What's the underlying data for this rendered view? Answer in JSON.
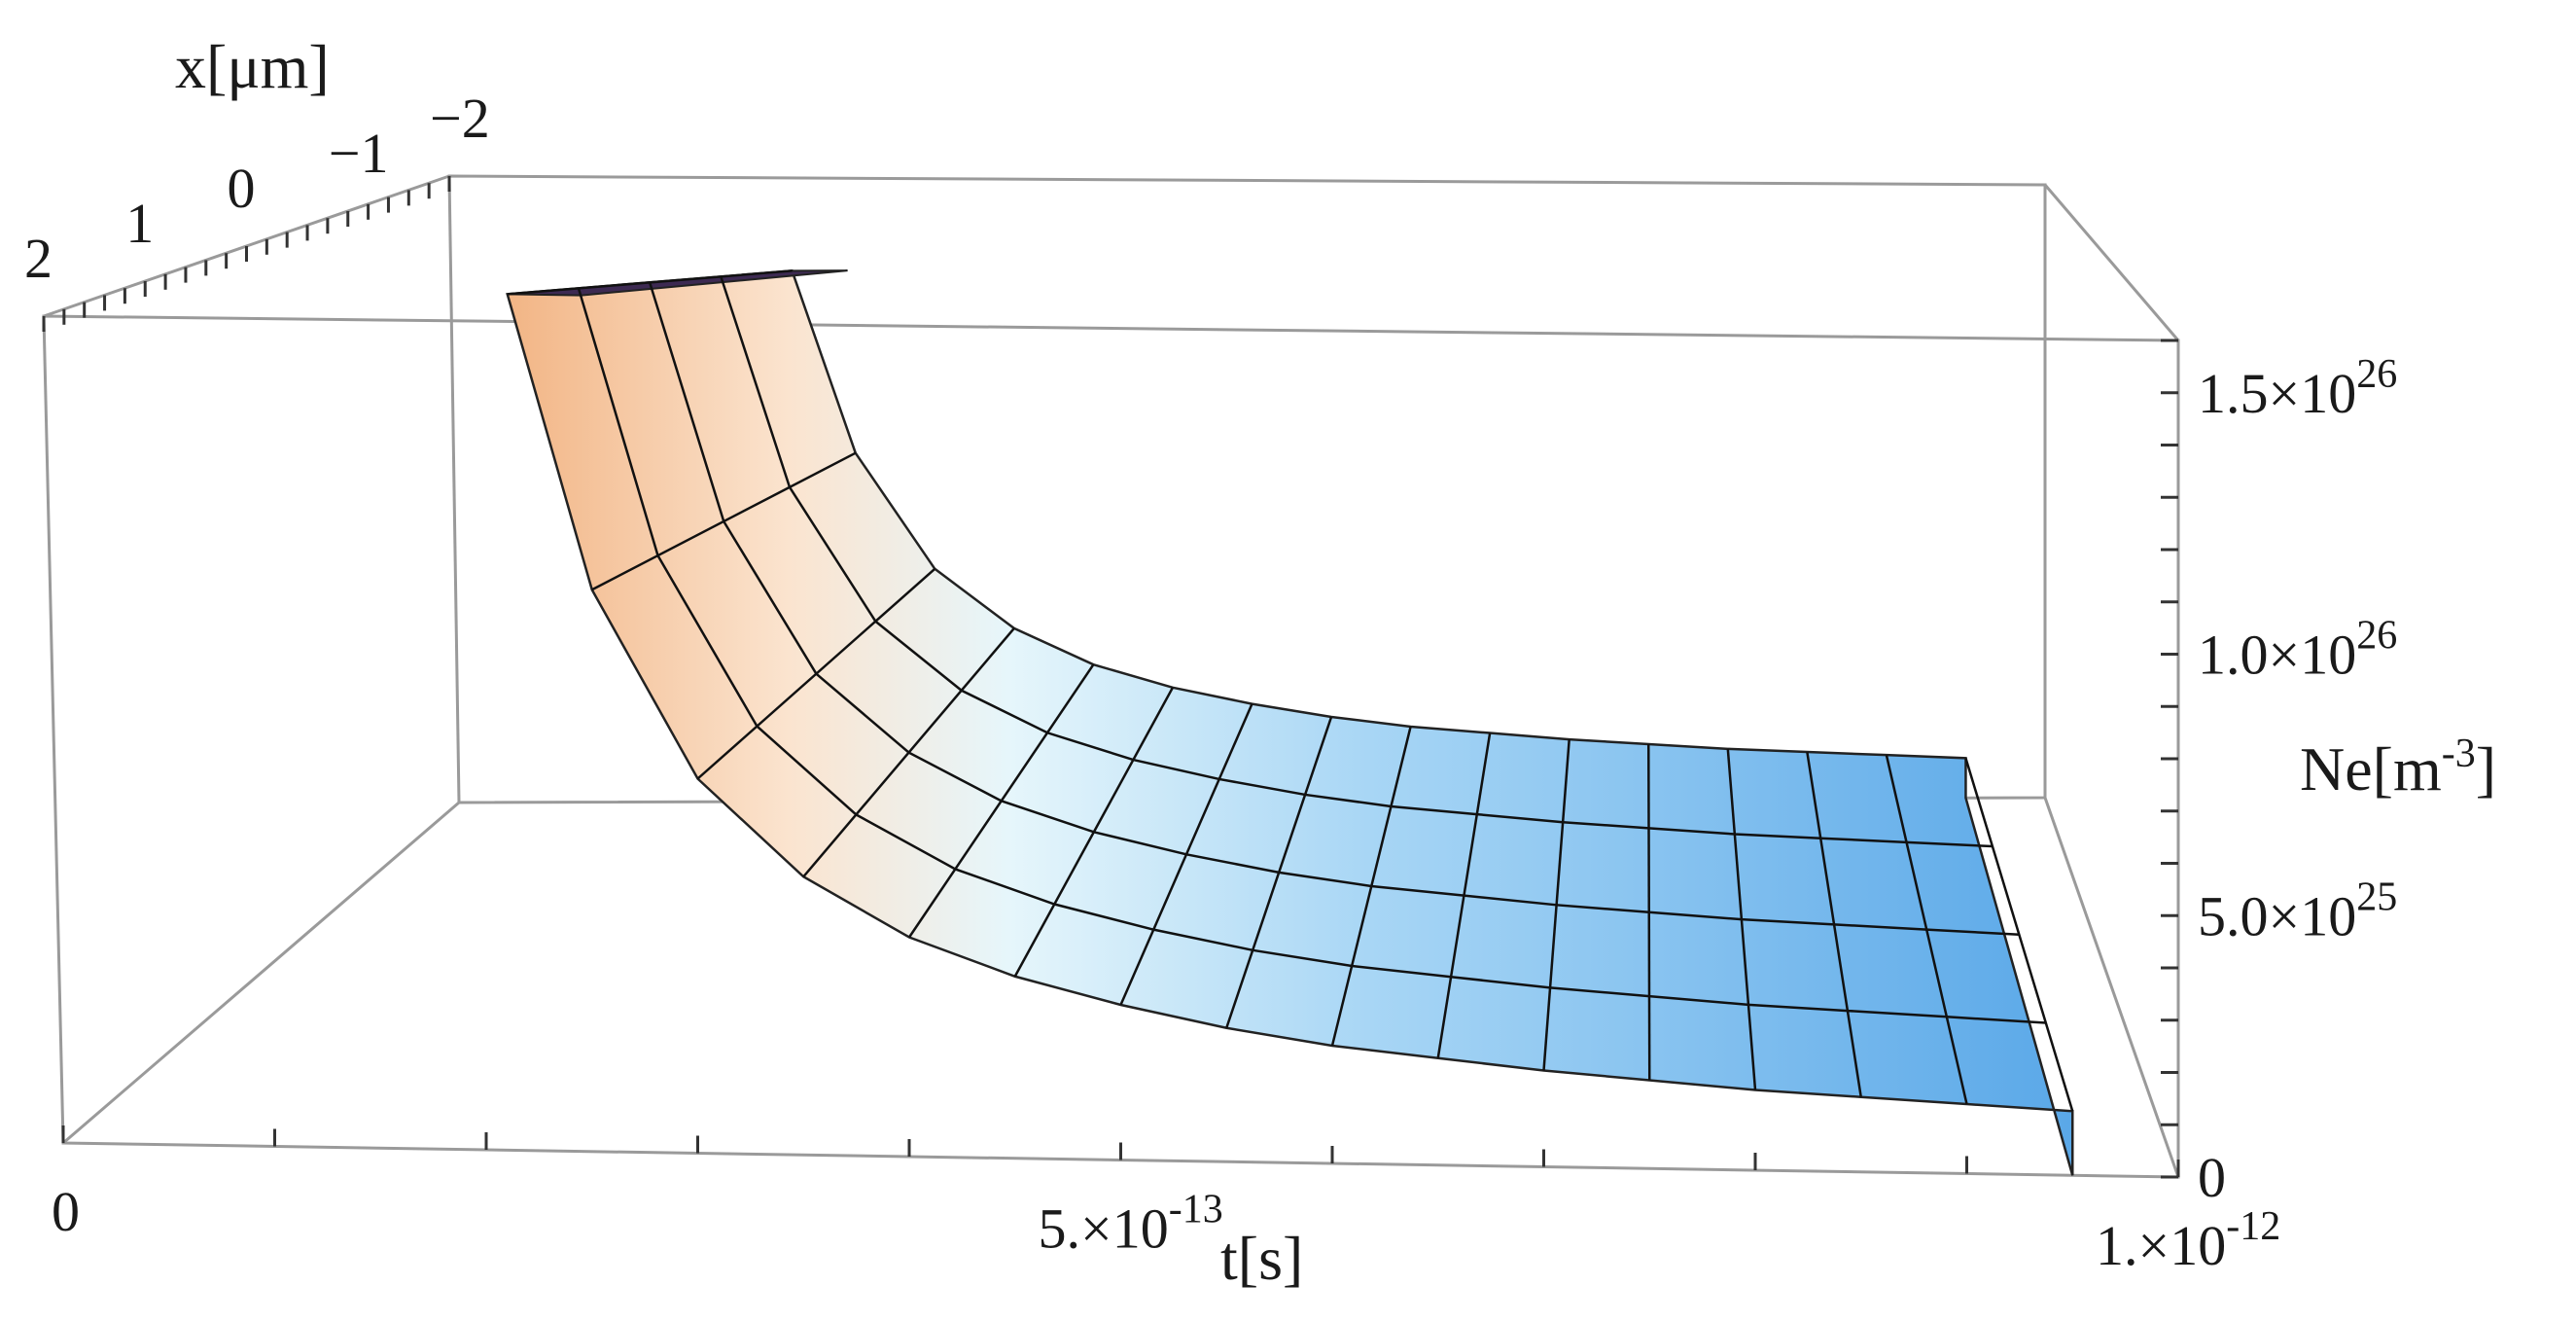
{
  "chart_data": {
    "type": "surface3d",
    "title": "",
    "xlabel": "t[s]",
    "ylabel": "x[μm]",
    "zlabel": "Ne[m",
    "zlabel_exponent": "-3",
    "zlabel_tail": "]",
    "t_range": [
      0,
      1e-12
    ],
    "x_range": [
      -2,
      2
    ],
    "z_range": [
      0,
      1.6e+26
    ],
    "t_ticks": [
      {
        "value": 0,
        "label": "0",
        "exp": ""
      },
      {
        "value": 5e-13,
        "label": "5.×10",
        "exp": "-13"
      },
      {
        "value": 1e-12,
        "label": "1.×10",
        "exp": "-12"
      }
    ],
    "x_ticks": [
      {
        "value": 2,
        "label": "2"
      },
      {
        "value": 1,
        "label": "1"
      },
      {
        "value": 0,
        "label": "0"
      },
      {
        "value": -1,
        "label": "−1"
      },
      {
        "value": -2,
        "label": "−2"
      }
    ],
    "z_ticks": [
      {
        "value": 0,
        "label": "0",
        "exp": ""
      },
      {
        "value": 5e+25,
        "label": "5.0×10",
        "exp": "25"
      },
      {
        "value": 1e+26,
        "label": "1.0×10",
        "exp": "26"
      },
      {
        "value": 1.5e+26,
        "label": "1.5×10",
        "exp": "26"
      }
    ],
    "surface": {
      "description_formula": "Ne(t) decays roughly as A/(1 + t/tau), clipped at plot maximum",
      "t_samples": [
        2.1e-13,
        2.5e-13,
        3e-13,
        3.5e-13,
        4e-13,
        4.5e-13,
        5e-13,
        5.5e-13,
        6e-13,
        6.5e-13,
        7e-13,
        7.5e-13,
        8e-13,
        8.5e-13,
        9e-13,
        9.5e-13
      ],
      "z_samples": [
        1.6e+26,
        1.05e+26,
        7e+25,
        5.2e+25,
        4.1e+25,
        3.4e+25,
        2.9e+25,
        2.5e+25,
        2.2e+25,
        2e+25,
        1.8e+25,
        1.65e+25,
        1.5e+25,
        1.4e+25,
        1.3e+25,
        1.2e+25
      ],
      "clip_color": "#3d2a52",
      "color_high": "#f2b585",
      "color_mid": "#e6f6fb",
      "color_low": "#5aa8e8"
    },
    "grid": false,
    "legend": "none"
  }
}
